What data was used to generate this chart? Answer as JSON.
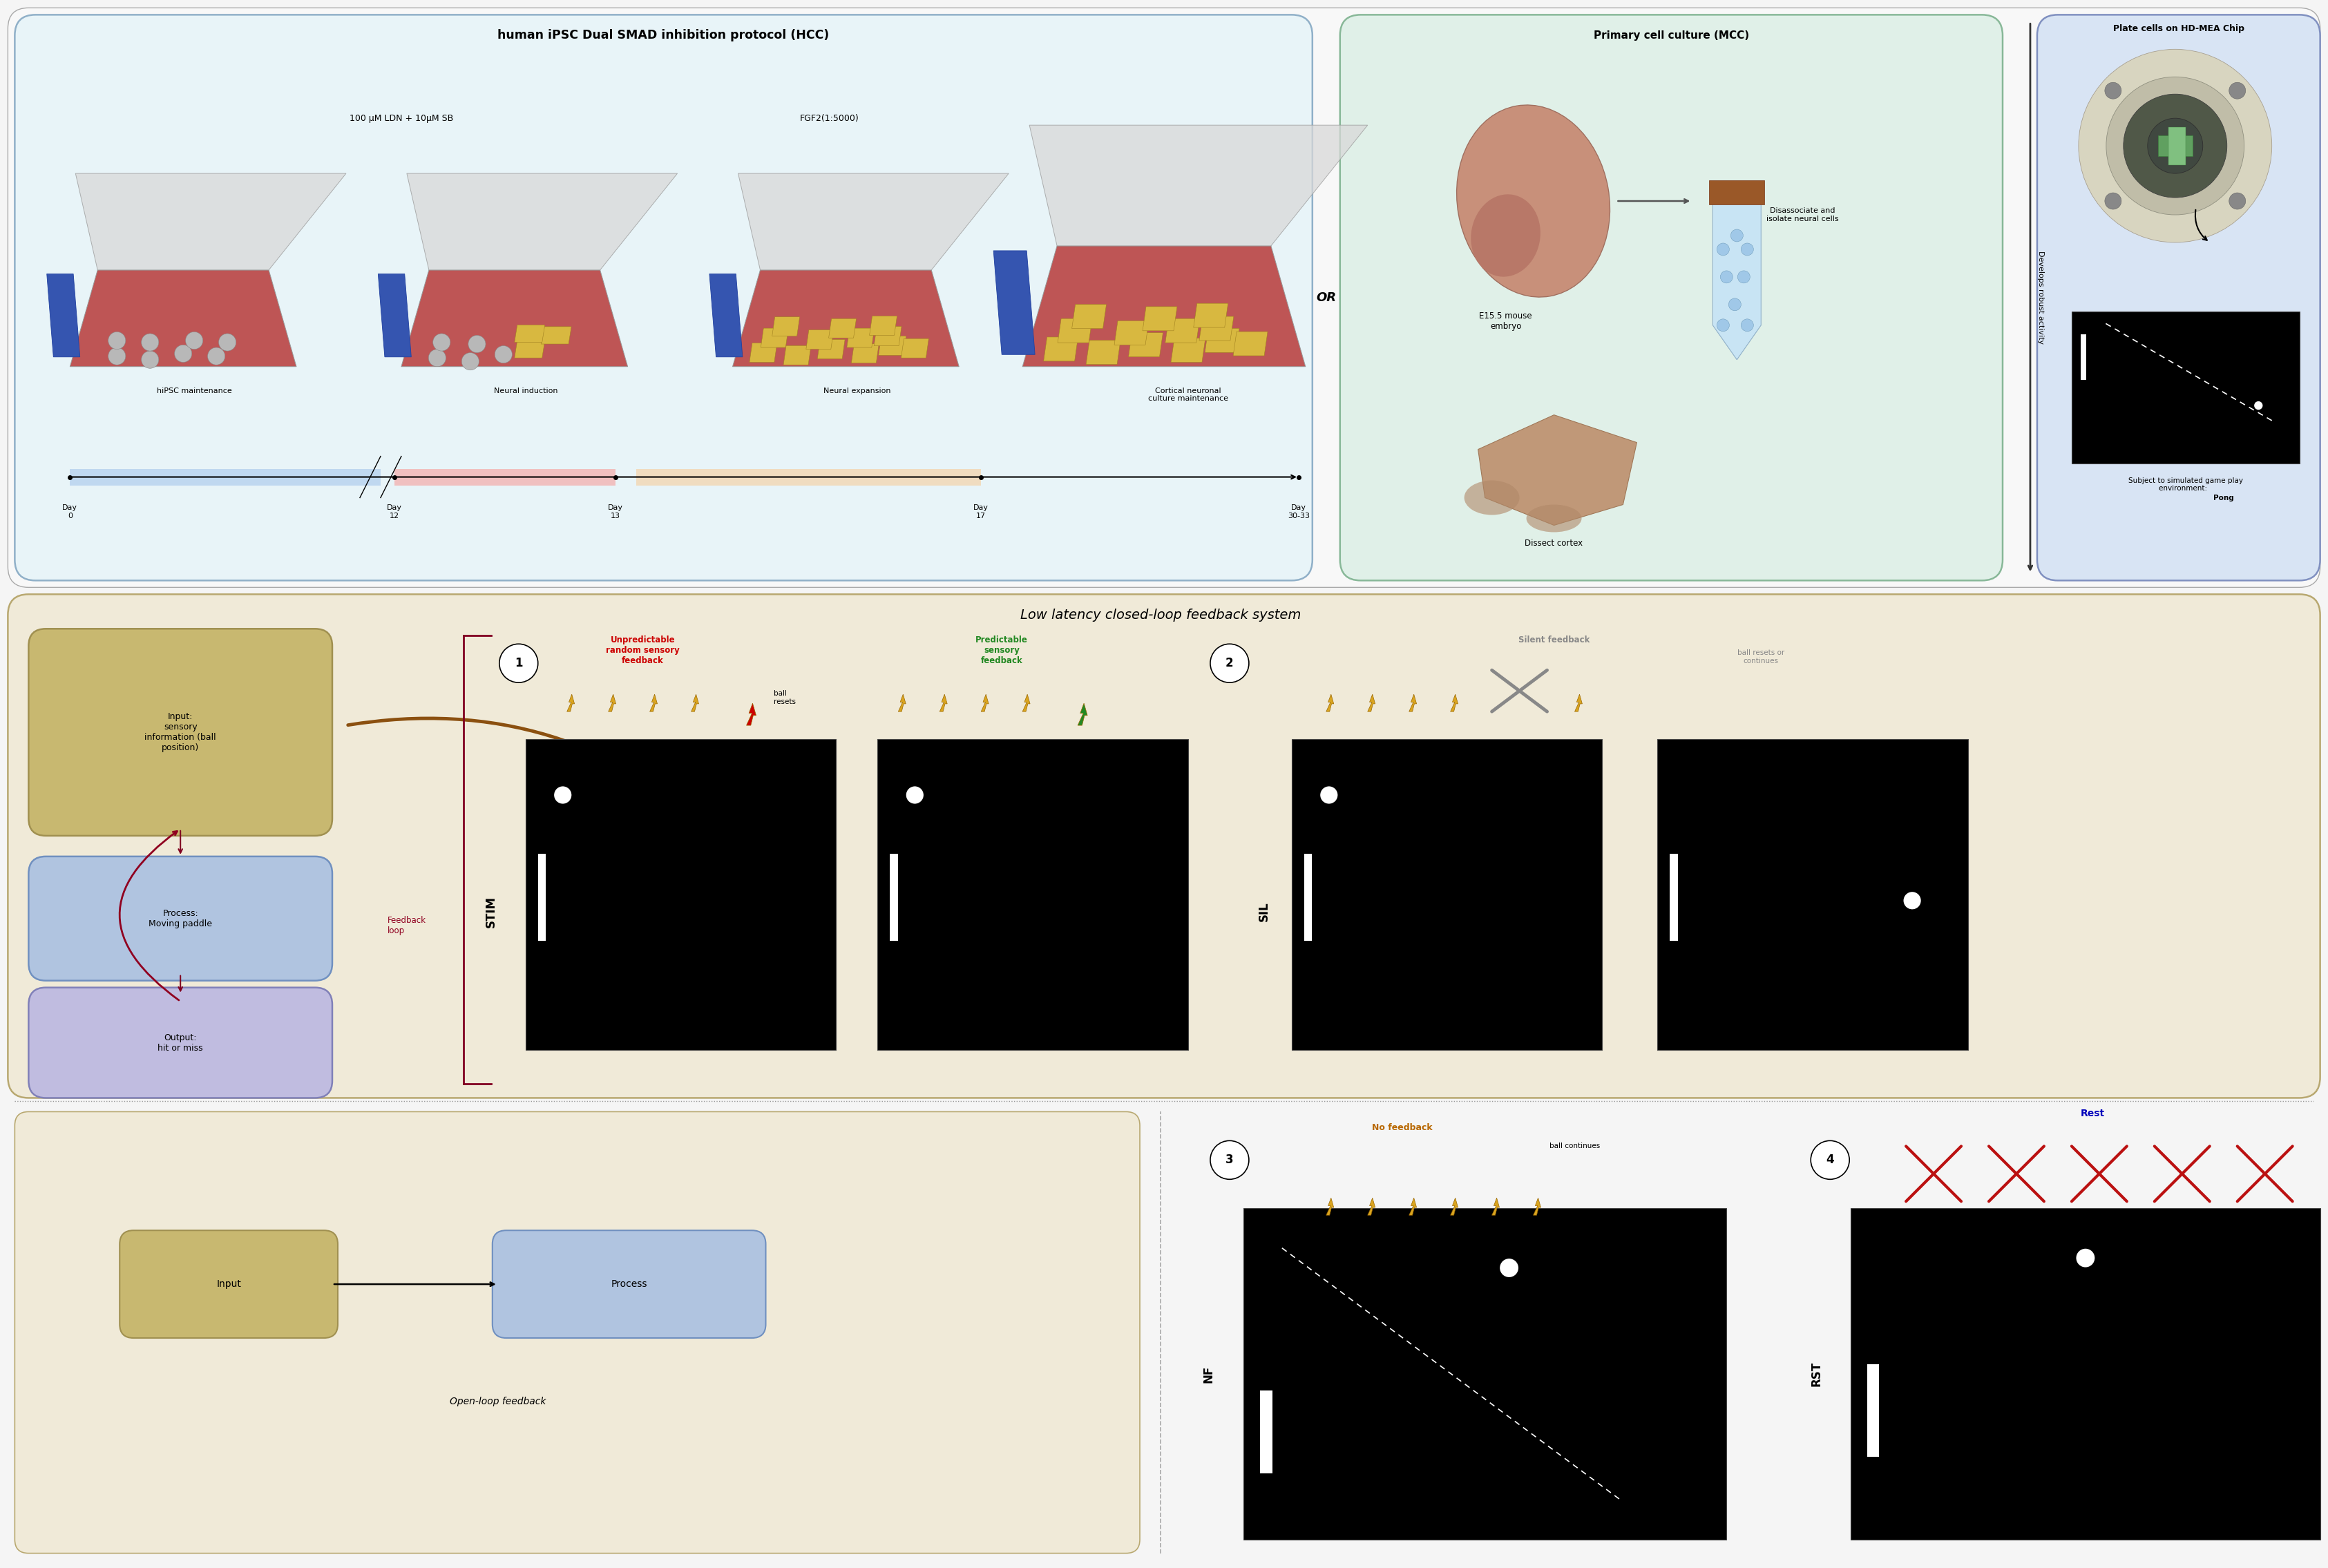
{
  "fig_width": 33.7,
  "fig_height": 22.7,
  "bg_color": "#f5f5f5",
  "hcc_bg": "#e8f4f8",
  "hcc_border": "#90b0c8",
  "hcc_title": "human iPSC Dual SMAD inhibition protocol (HCC)",
  "hcc_label1": "100 μM LDN + 10μM SB",
  "hcc_label2": "FGF2(1:5000)",
  "hcc_stages": [
    "hiPSC maintenance",
    "Neural induction",
    "Neural expansion",
    "Cortical neuronal\nculture maintenance"
  ],
  "hcc_days": [
    "Day\n0",
    "Day\n12",
    "Day\n13",
    "Day\n17",
    "Day\n30-33"
  ],
  "mcc_bg": "#e0f0e8",
  "mcc_border": "#88b898",
  "mcc_title": "Primary cell culture (MCC)",
  "mcc_label1": "E15.5 mouse\nembryo",
  "mcc_label2": "Disassociate and\nisolate neural cells",
  "mcc_label3": "Dissect cortex",
  "right_bg": "#d8e4f4",
  "right_border": "#8090c0",
  "right_title": "Plate cells on HD-MEA Chip",
  "right_label1": "Develops robust activity",
  "right_label2": "Subject to simulated game play\nenvironment: ",
  "right_label2b": "Pong",
  "mid_bg": "#f0ead8",
  "mid_border": "#b8a870",
  "mid_title": "Low latency closed-loop feedback system",
  "input_box_text": "Input:\nsensory\ninformation (ball\nposition)",
  "process_box_text": "Process:\nMoving paddle",
  "output_box_text": "Output:\nhit or miss",
  "feedback_text": "Feedback\nloop",
  "stim_label": "STIM",
  "sil_label": "SIL",
  "nf_label": "NF",
  "rst_label": "RST",
  "unpred_text": "Unpredictable\nrandom sensory\nfeedback",
  "pred_text": "Predictable\nsensory\nfeedback",
  "silent_text": "Silent feedback",
  "silent_sub": "ball resets or\ncontinues",
  "ball_resets_text": "ball\nresets",
  "no_fb_text": "No feedback",
  "no_fb_sub": "ball continues",
  "rest_text": "Rest",
  "input_bg": "#c8b870",
  "input_border": "#a09050",
  "process_bg": "#b0c4e0",
  "process_border": "#7090c0",
  "output_bg": "#c0bce0",
  "output_border": "#8080b8",
  "open_loop_title": "Open-loop feedback",
  "open_loop_input": "Input",
  "open_loop_process": "Process",
  "unpred_color": "#cc0000",
  "pred_color": "#228822",
  "silent_color": "#888888",
  "nofb_color": "#b86800",
  "rest_color": "#0000bb",
  "arrow_brown": "#8B5010",
  "arrow_darkred": "#800020",
  "feedback_color": "#900020",
  "timeline_seg1": "#c0d8f0",
  "timeline_seg2": "#f0c0c0",
  "timeline_seg3": "#f0dcc0"
}
